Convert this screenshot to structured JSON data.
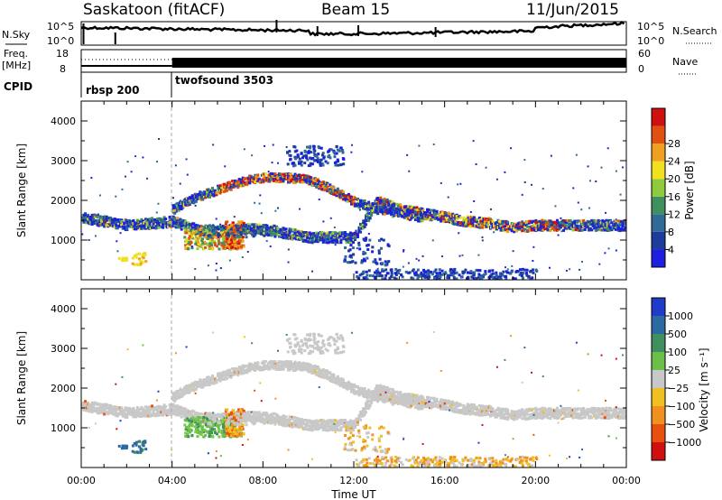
{
  "header": {
    "station": "Saskatoon (fitACF)",
    "beam": "Beam 15",
    "date": "11/Jun/2015"
  },
  "strip_labels": {
    "nsky": "N.Sky",
    "nsearch": "N.Search",
    "freq_line1": "Freq.",
    "freq_unit": "[MHz]",
    "nave": "Nave",
    "cpid": "CPID",
    "nsky_ticks": [
      "10^5",
      "10^0"
    ],
    "nsearch_ticks": [
      "10^5",
      "10^0"
    ],
    "freq_ticks": [
      "18",
      "8"
    ],
    "nave_ticks": [
      "60",
      "0"
    ],
    "cpid_segments": [
      {
        "name": "rbsp 200",
        "start_hour": 0,
        "end_hour": 4.0
      },
      {
        "name": "twofsound 3503",
        "start_hour": 4.0,
        "end_hour": 24
      }
    ]
  },
  "chart_data": [
    {
      "type": "heatmap",
      "panel": "power",
      "xlabel": "",
      "ylabel": "Slant Range [km]",
      "xlim": [
        0,
        24
      ],
      "ylim": [
        0,
        4500
      ],
      "x_ticks": [
        "00:00",
        "04:00",
        "08:00",
        "12:00",
        "16:00",
        "20:00",
        "00:00"
      ],
      "y_ticks": [
        1000,
        2000,
        3000,
        4000
      ],
      "colorbar_label": "Power [dB]",
      "colorbar_ticks": [
        "4",
        "8",
        "12",
        "16",
        "20",
        "24",
        "28"
      ],
      "colorbar_colors": [
        "#1e1ee0",
        "#1e3c9c",
        "#2f6b96",
        "#3f8f5f",
        "#8fca3c",
        "#f0e020",
        "#f0a020",
        "#e05010",
        "#d01010"
      ],
      "scatter_bands": [
        {
          "name": "low band",
          "points_hr_km": [
            [
              0,
              1600
            ],
            [
              1,
              1500
            ],
            [
              2,
              1400
            ],
            [
              3,
              1450
            ],
            [
              4,
              1500
            ],
            [
              5,
              1300
            ],
            [
              6,
              1250
            ],
            [
              7,
              1300
            ],
            [
              8,
              1300
            ],
            [
              9,
              1200
            ],
            [
              10,
              1100
            ],
            [
              12,
              1100
            ],
            [
              13,
              2000
            ],
            [
              14,
              1800
            ],
            [
              15,
              1700
            ],
            [
              16,
              1600
            ],
            [
              17,
              1500
            ],
            [
              18,
              1450
            ],
            [
              19,
              1350
            ],
            [
              20,
              1400
            ],
            [
              21,
              1400
            ],
            [
              22,
              1400
            ],
            [
              23,
              1400
            ],
            [
              24,
              1400
            ]
          ]
        },
        {
          "name": "upper arc",
          "points_hr_km": [
            [
              4.0,
              1800
            ],
            [
              5,
              2100
            ],
            [
              6,
              2300
            ],
            [
              7,
              2500
            ],
            [
              8,
              2600
            ],
            [
              9,
              2600
            ],
            [
              10,
              2550
            ],
            [
              11,
              2300
            ],
            [
              12,
              2000
            ],
            [
              13,
              1800
            ],
            [
              14,
              1700
            ],
            [
              15,
              1600
            ]
          ]
        }
      ]
    },
    {
      "type": "heatmap",
      "panel": "velocity",
      "xlabel": "Time UT",
      "ylabel": "Slant Range [km]",
      "xlim": [
        0,
        24
      ],
      "ylim": [
        0,
        4500
      ],
      "x_ticks": [
        "00:00",
        "04:00",
        "08:00",
        "12:00",
        "16:00",
        "20:00",
        "00:00"
      ],
      "y_ticks": [
        1000,
        2000,
        3000,
        4000
      ],
      "colorbar_label": "Velocity [m s⁻¹]",
      "colorbar_ticks": [
        "1000",
        "500",
        "100",
        "25",
        "−25",
        "−100",
        "−500",
        "−1000"
      ],
      "colorbar_colors": [
        "#1e3cc8",
        "#2a6aa0",
        "#3f8f5f",
        "#6cc04a",
        "#c8c8c8",
        "#f0c020",
        "#f09020",
        "#e85010",
        "#d01010"
      ]
    }
  ]
}
